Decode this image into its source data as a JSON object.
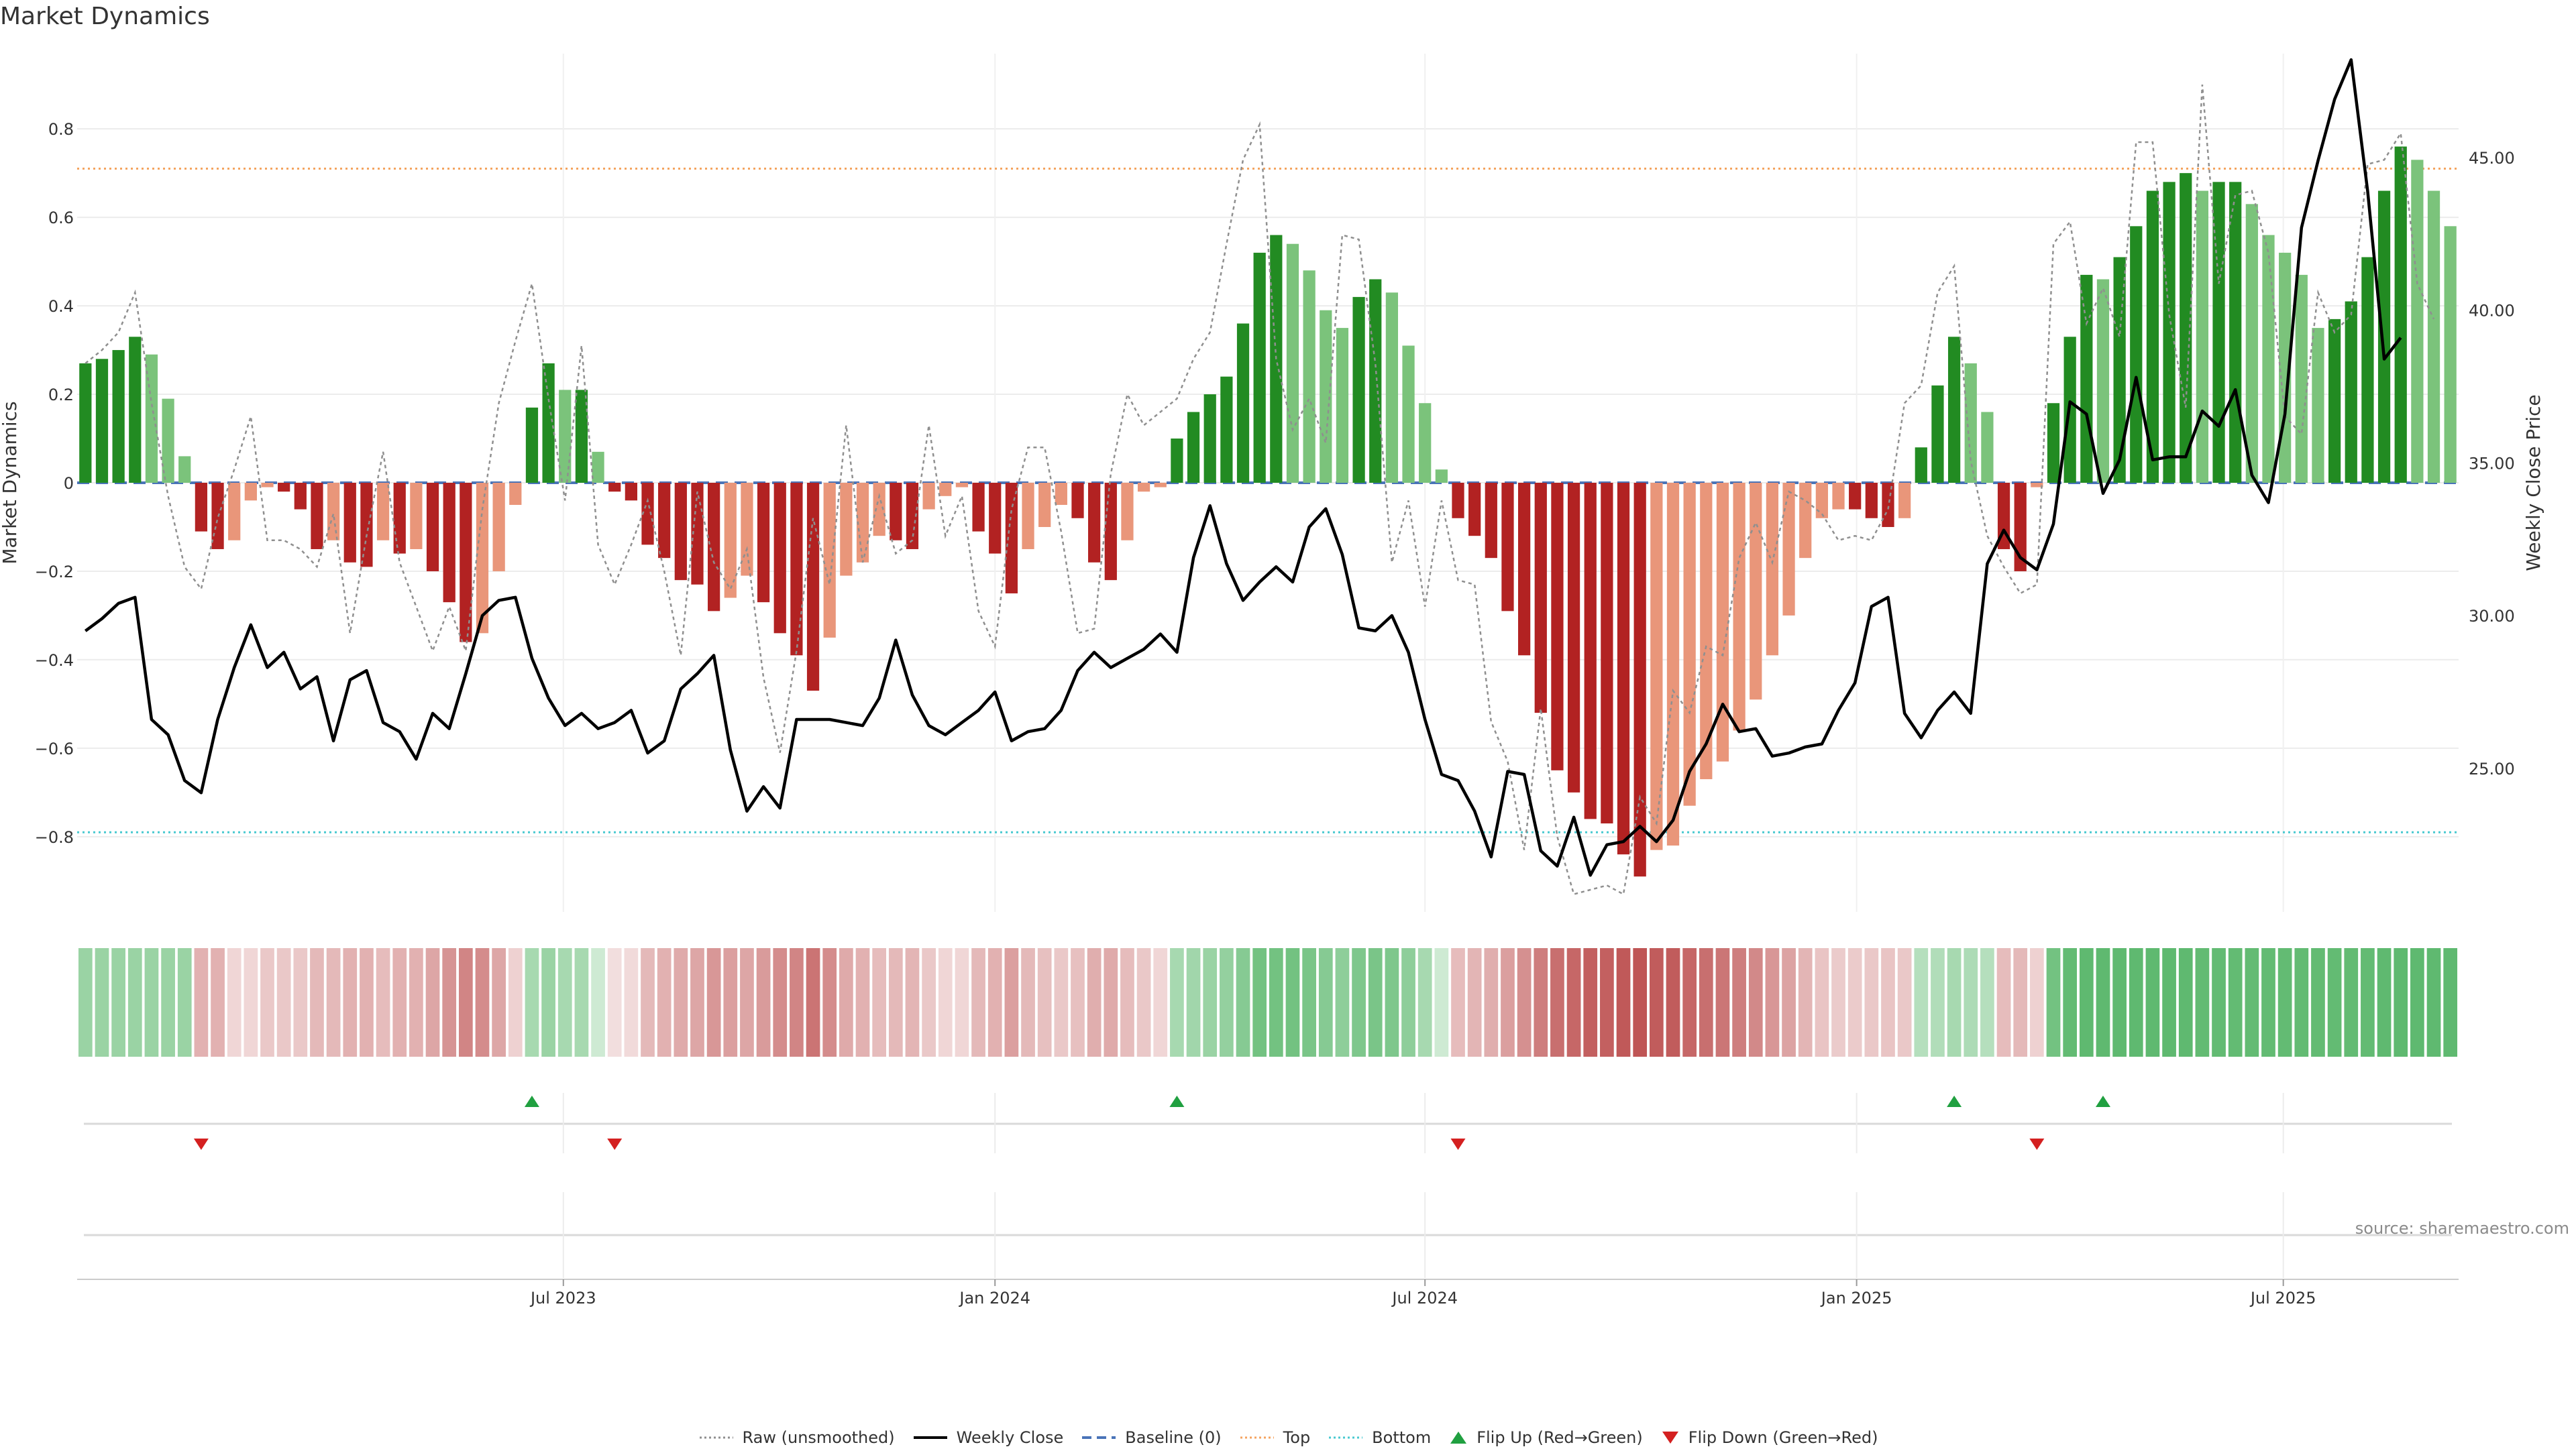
{
  "title": "Market Dynamics",
  "source": "source: sharemaestro.com",
  "colors": {
    "strong_green": "#228b22",
    "light_green": "#7bc37b",
    "strong_red": "#b22222",
    "light_red": "#e9967a",
    "top_line": "#f4a460",
    "bottom_line": "#48c9d0",
    "baseline": "#4a74b8",
    "raw_line": "#8f8f8f",
    "close_line": "#000000",
    "flip_up": "#20a040",
    "flip_down": "#d42020"
  },
  "legend": [
    {
      "label": "Raw (unsmoothed)",
      "icon": "dotted-gray-line"
    },
    {
      "label": "Weekly Close",
      "icon": "solid-black-line"
    },
    {
      "label": "Baseline (0)",
      "icon": "dashed-blue-line"
    },
    {
      "label": "Top",
      "icon": "dotted-orange-line"
    },
    {
      "label": "Bottom",
      "icon": "dotted-cyan-line"
    },
    {
      "label": "Flip Up (Red→Green)",
      "icon": "green-up-triangle"
    },
    {
      "label": "Flip Down (Green→Red)",
      "icon": "red-down-triangle"
    }
  ],
  "chart_data": {
    "type": "bar",
    "ylabel": "Market Dynamics",
    "y2label": "Weekly Close Price",
    "ylim": [
      -0.97,
      0.97
    ],
    "y2lim": [
      20.3,
      48.4
    ],
    "yticks": [
      "0.8",
      "0.6",
      "0.4",
      "0.2",
      "0",
      "−0.2",
      "−0.4",
      "−0.6",
      "−0.8"
    ],
    "y2ticks": [
      "45.00",
      "40.00",
      "35.00",
      "30.00",
      "25.00"
    ],
    "top_level": 0.71,
    "bottom_level": -0.79,
    "baseline": 0,
    "xticks": [
      {
        "label": "Jul 2023",
        "index": 29.4
      },
      {
        "label": "Jan 2024",
        "index": 55.5
      },
      {
        "label": "Jul 2024",
        "index": 81.5
      },
      {
        "label": "Jan 2025",
        "index": 107.6
      },
      {
        "label": "Jul 2025",
        "index": 133.4
      }
    ],
    "bars": [
      0.27,
      0.28,
      0.3,
      0.33,
      0.29,
      0.19,
      0.06,
      -0.11,
      -0.15,
      -0.13,
      -0.04,
      -0.01,
      -0.02,
      -0.06,
      -0.15,
      -0.13,
      -0.18,
      -0.19,
      -0.13,
      -0.16,
      -0.15,
      -0.2,
      -0.27,
      -0.36,
      -0.34,
      -0.2,
      -0.05,
      0.17,
      0.27,
      0.21,
      0.21,
      0.07,
      -0.02,
      -0.04,
      -0.14,
      -0.17,
      -0.22,
      -0.23,
      -0.29,
      -0.26,
      -0.21,
      -0.27,
      -0.34,
      -0.39,
      -0.47,
      -0.35,
      -0.21,
      -0.18,
      -0.12,
      -0.13,
      -0.15,
      -0.06,
      -0.03,
      -0.01,
      -0.11,
      -0.16,
      -0.25,
      -0.15,
      -0.1,
      -0.05,
      -0.08,
      -0.18,
      -0.22,
      -0.13,
      -0.02,
      -0.01,
      0.1,
      0.16,
      0.2,
      0.24,
      0.36,
      0.52,
      0.56,
      0.54,
      0.48,
      0.39,
      0.35,
      0.42,
      0.46,
      0.43,
      0.31,
      0.18,
      0.03,
      -0.08,
      -0.12,
      -0.17,
      -0.29,
      -0.39,
      -0.52,
      -0.65,
      -0.7,
      -0.76,
      -0.77,
      -0.84,
      -0.89,
      -0.83,
      -0.82,
      -0.73,
      -0.67,
      -0.63,
      -0.56,
      -0.49,
      -0.39,
      -0.3,
      -0.17,
      -0.08,
      -0.06,
      -0.06,
      -0.08,
      -0.1,
      -0.08,
      0.08,
      0.22,
      0.33,
      0.27,
      0.16,
      -0.15,
      -0.2,
      -0.01,
      0.18,
      0.33,
      0.47,
      0.46,
      0.51,
      0.58,
      0.66,
      0.68,
      0.7,
      0.66,
      0.68,
      0.68,
      0.63,
      0.56,
      0.52,
      0.47,
      0.35,
      0.37,
      0.41,
      0.51,
      0.66,
      0.76,
      0.73,
      0.66,
      0.58
    ],
    "raw": [
      0.27,
      0.3,
      0.34,
      0.43,
      0.18,
      -0.03,
      -0.19,
      -0.24,
      -0.08,
      0.03,
      0.15,
      -0.13,
      -0.13,
      -0.15,
      -0.19,
      -0.07,
      -0.34,
      -0.12,
      0.07,
      -0.18,
      -0.28,
      -0.38,
      -0.28,
      -0.38,
      -0.06,
      0.18,
      0.32,
      0.45,
      0.19,
      -0.04,
      0.31,
      -0.14,
      -0.23,
      -0.14,
      -0.04,
      -0.2,
      -0.39,
      -0.02,
      -0.18,
      -0.24,
      -0.15,
      -0.44,
      -0.61,
      -0.38,
      -0.08,
      -0.23,
      0.13,
      -0.18,
      -0.03,
      -0.16,
      -0.13,
      0.13,
      -0.12,
      -0.03,
      -0.29,
      -0.37,
      -0.06,
      0.08,
      0.08,
      -0.11,
      -0.34,
      -0.33,
      0.02,
      0.2,
      0.13,
      0.16,
      0.19,
      0.28,
      0.34,
      0.54,
      0.73,
      0.81,
      0.28,
      0.12,
      0.19,
      0.09,
      0.56,
      0.55,
      0.27,
      -0.18,
      -0.04,
      -0.28,
      -0.04,
      -0.22,
      -0.23,
      -0.54,
      -0.63,
      -0.83,
      -0.51,
      -0.8,
      -0.93,
      -0.92,
      -0.91,
      -0.93,
      -0.71,
      -0.77,
      -0.47,
      -0.52,
      -0.37,
      -0.39,
      -0.17,
      -0.09,
      -0.18,
      -0.02,
      -0.04,
      -0.07,
      -0.13,
      -0.12,
      -0.13,
      -0.06,
      0.18,
      0.22,
      0.43,
      0.49,
      0.05,
      -0.12,
      -0.19,
      -0.25,
      -0.23,
      0.54,
      0.59,
      0.36,
      0.44,
      0.33,
      0.77,
      0.77,
      0.38,
      0.17,
      0.9,
      0.45,
      0.65,
      0.66,
      0.52,
      0.15,
      0.11,
      0.43,
      0.34,
      0.38,
      0.72,
      0.73,
      0.79,
      0.45,
      0.37
    ],
    "close": [
      29.5,
      29.9,
      30.4,
      30.6,
      26.6,
      26.1,
      24.6,
      24.2,
      26.6,
      28.3,
      29.7,
      28.3,
      28.8,
      27.6,
      28.0,
      25.9,
      27.9,
      28.2,
      26.5,
      26.2,
      25.3,
      26.8,
      26.3,
      28.1,
      30.0,
      30.5,
      30.6,
      28.6,
      27.3,
      26.4,
      26.8,
      26.3,
      26.5,
      26.9,
      25.5,
      25.9,
      27.6,
      28.1,
      28.7,
      25.6,
      23.6,
      24.4,
      23.7,
      26.6,
      26.6,
      26.6,
      26.5,
      26.4,
      27.3,
      29.2,
      27.4,
      26.4,
      26.1,
      26.5,
      26.9,
      27.5,
      25.9,
      26.2,
      26.3,
      26.9,
      28.2,
      28.8,
      28.3,
      28.6,
      28.9,
      29.4,
      28.8,
      31.9,
      33.6,
      31.7,
      30.5,
      31.1,
      31.6,
      31.1,
      32.9,
      33.5,
      32.0,
      29.6,
      29.5,
      30.0,
      28.8,
      26.6,
      24.8,
      24.6,
      23.6,
      22.1,
      24.9,
      24.8,
      22.3,
      21.8,
      23.4,
      21.5,
      22.5,
      22.6,
      23.1,
      22.6,
      23.3,
      24.9,
      25.8,
      27.1,
      26.2,
      26.3,
      25.4,
      25.5,
      25.7,
      25.8,
      26.9,
      27.8,
      30.3,
      30.6,
      26.8,
      26.0,
      26.9,
      27.5,
      26.8,
      31.7,
      32.8,
      31.9,
      31.5,
      33.0,
      37.0,
      36.6,
      34.0,
      35.1,
      37.8,
      35.1,
      35.2,
      35.2,
      36.7,
      36.2,
      37.4,
      34.6,
      33.7,
      36.6,
      42.7,
      44.9,
      46.9,
      48.2,
      43.9,
      38.4,
      39.1
    ],
    "heat": [
      0.52,
      0.52,
      0.52,
      0.52,
      0.52,
      0.52,
      0.52,
      -0.42,
      -0.42,
      -0.22,
      -0.22,
      -0.3,
      -0.3,
      -0.3,
      -0.38,
      -0.38,
      -0.42,
      -0.42,
      -0.36,
      -0.42,
      -0.42,
      -0.48,
      -0.58,
      -0.66,
      -0.62,
      -0.48,
      -0.25,
      0.45,
      0.52,
      0.45,
      0.45,
      0.25,
      -0.18,
      -0.2,
      -0.38,
      -0.42,
      -0.46,
      -0.48,
      -0.56,
      -0.52,
      -0.48,
      -0.54,
      -0.62,
      -0.66,
      -0.75,
      -0.62,
      -0.46,
      -0.42,
      -0.36,
      -0.38,
      -0.4,
      -0.3,
      -0.22,
      -0.22,
      -0.38,
      -0.42,
      -0.52,
      -0.38,
      -0.34,
      -0.3,
      -0.34,
      -0.44,
      -0.46,
      -0.36,
      -0.3,
      -0.22,
      0.45,
      0.48,
      0.52,
      0.55,
      0.62,
      0.72,
      0.72,
      0.72,
      0.68,
      0.62,
      0.58,
      0.66,
      0.68,
      0.66,
      0.58,
      0.45,
      0.25,
      -0.36,
      -0.4,
      -0.44,
      -0.52,
      -0.6,
      -0.7,
      -0.78,
      -0.82,
      -0.86,
      -0.86,
      -0.9,
      -0.92,
      -0.88,
      -0.88,
      -0.82,
      -0.78,
      -0.74,
      -0.7,
      -0.64,
      -0.56,
      -0.5,
      -0.4,
      -0.32,
      -0.28,
      -0.28,
      -0.3,
      -0.32,
      -0.3,
      0.38,
      0.4,
      0.45,
      0.42,
      0.38,
      -0.36,
      -0.38,
      -0.25,
      0.72,
      0.8,
      0.82,
      0.82,
      0.82,
      0.82,
      0.82,
      0.82,
      0.82,
      0.8,
      0.8,
      0.8,
      0.8,
      0.8,
      0.8,
      0.8,
      0.8,
      0.8,
      0.8,
      0.8,
      0.82,
      0.82,
      0.82,
      0.82,
      0.82
    ],
    "flips_up": [
      27,
      66,
      113,
      122
    ],
    "flips_down": [
      7,
      32,
      83,
      118
    ]
  }
}
